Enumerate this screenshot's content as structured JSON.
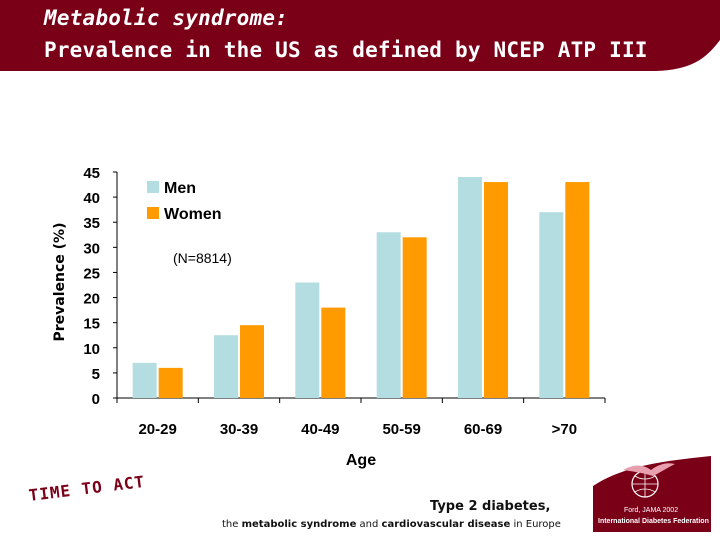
{
  "header": {
    "title_line1": "Metabolic syndrome:",
    "title_line2": "Prevalence in the US as defined by NCEP ATP III",
    "bg_color": "#7a0018"
  },
  "chart_data": {
    "type": "bar",
    "title": "",
    "categories": [
      "20-29",
      "30-39",
      "40-49",
      "50-59",
      "60-69",
      ">70"
    ],
    "series": [
      {
        "name": "Men",
        "values": [
          7,
          12.5,
          23,
          33,
          44,
          37
        ],
        "color": "#b4dde1"
      },
      {
        "name": "Women",
        "values": [
          6,
          14.5,
          18,
          32,
          43,
          43
        ],
        "color": "#ff9a00"
      }
    ],
    "xlabel": "Age",
    "ylabel": "Prevalence (%)",
    "ylim": [
      0,
      45
    ],
    "yticks": [
      0,
      5,
      10,
      15,
      20,
      25,
      30,
      35,
      40,
      45
    ],
    "annotation": "(N=8814)",
    "grid": false,
    "legend_position": "top-left"
  },
  "footer": {
    "slogan": "TIME TO ACT",
    "line1": "Type 2 diabetes,",
    "line2_parts": [
      {
        "text": "the ",
        "bold": false
      },
      {
        "text": "metabolic syndrome",
        "bold": true
      },
      {
        "text": " and ",
        "bold": false
      },
      {
        "text": "cardiovascular disease",
        "bold": true
      },
      {
        "text": " in Europe",
        "bold": false
      }
    ],
    "logo_citation": "Ford, JAMA 2002",
    "logo_org": "International Diabetes Federation",
    "logo_icon": "idf-bird-globe-icon"
  }
}
